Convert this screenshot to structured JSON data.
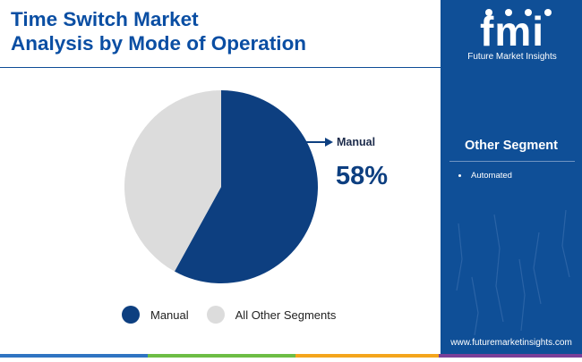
{
  "header": {
    "title_line1": "Time Switch Market",
    "title_line2": "Analysis by Mode of Operation"
  },
  "brand": {
    "logo_text": "fmi",
    "name": "Future Market Insights",
    "website": "www.futuremarketinsights.com"
  },
  "sidebar": {
    "segment_title": "Other Segment",
    "segment_items": [
      "Automated"
    ]
  },
  "colors": {
    "title": "#0a4ea3",
    "sidebar_bg": "#0f4f97",
    "primary_slice": "#0d3f80",
    "other_slice": "#dcdcdc",
    "bottom_bar": [
      "#2f74c2",
      "#6dbd45",
      "#f4a51c",
      "#7b3f98"
    ]
  },
  "chart_data": {
    "type": "pie",
    "slices": [
      {
        "name": "Manual",
        "value": 58,
        "color": "#0d3f80"
      },
      {
        "name": "All Other Segments",
        "value": 42,
        "color": "#dcdcdc"
      }
    ],
    "callout": {
      "label": "Manual",
      "value_text": "58%"
    },
    "legend": {
      "position": "bottom",
      "entries": [
        "Manual",
        "All Other Segments"
      ]
    }
  }
}
